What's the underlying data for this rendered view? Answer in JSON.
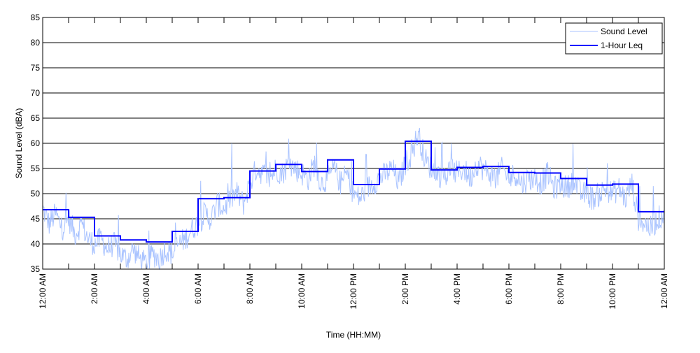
{
  "chart_data": {
    "type": "line",
    "xlabel": "Time (HH:MM)",
    "ylabel": "Sound Level (dBA)",
    "ylim": [
      35,
      85
    ],
    "yticks": [
      35,
      40,
      45,
      50,
      55,
      60,
      65,
      70,
      75,
      80,
      85
    ],
    "xlim_hours": [
      0,
      24
    ],
    "xtick_labels": [
      "12:00 AM",
      "2:00 AM",
      "4:00 AM",
      "6:00 AM",
      "8:00 AM",
      "10:00 AM",
      "12:00 PM",
      "2:00 PM",
      "4:00 PM",
      "6:00 PM",
      "8:00 PM",
      "10:00 PM",
      "12:00 AM"
    ],
    "grid": "horizontal",
    "legend_position": "top-right",
    "series": [
      {
        "name": "Sound Level",
        "color": "#a9c3ff",
        "interval_minutes": 15,
        "values": [
          47,
          44,
          46,
          43,
          45,
          42,
          44,
          41,
          40,
          41,
          39,
          40,
          38,
          37,
          39,
          37,
          36,
          38,
          37,
          39,
          38,
          40,
          41,
          43,
          44,
          46,
          45,
          48,
          47,
          49,
          50,
          48,
          52,
          55,
          54,
          53,
          55,
          54,
          56,
          55,
          54,
          53,
          56,
          52,
          53,
          55,
          52,
          54,
          50,
          49,
          51,
          52,
          53,
          54,
          55,
          52,
          56,
          58,
          62,
          57,
          55,
          54,
          53,
          55,
          54,
          55,
          53,
          56,
          55,
          54,
          53,
          55,
          53,
          54,
          52,
          53,
          53,
          52,
          54,
          51,
          52,
          51,
          53,
          50,
          50,
          49,
          50,
          51,
          50,
          51,
          49,
          52,
          45,
          44,
          43,
          45,
          46
        ]
      },
      {
        "name": "1-Hour Leq",
        "color": "#0000ff",
        "interval_minutes": 60,
        "values": [
          46.8,
          45.3,
          41.6,
          40.8,
          40.4,
          42.5,
          49.0,
          49.2,
          54.5,
          55.8,
          54.4,
          56.7,
          51.8,
          54.9,
          60.4,
          54.7,
          55.2,
          55.4,
          54.2,
          54.1,
          53.0,
          51.7,
          51.9,
          46.4
        ]
      }
    ]
  }
}
